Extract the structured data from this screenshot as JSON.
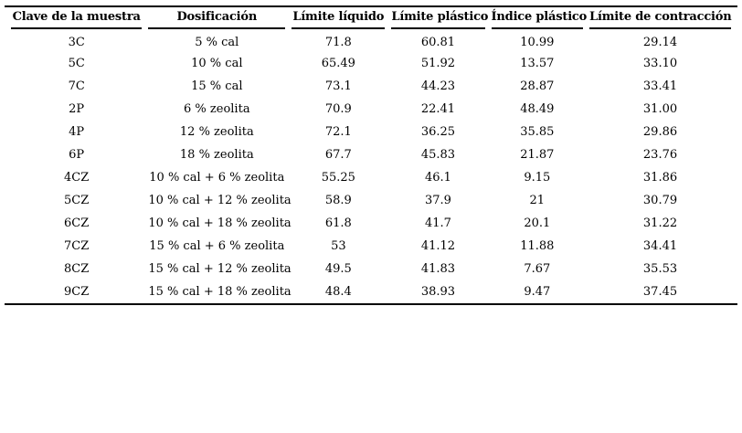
{
  "page": {
    "background": "#ffffff"
  },
  "colors": {
    "text": "#000000",
    "rule_line": "#000000",
    "background": "#ffffff"
  },
  "table": {
    "columns": [
      "Clave de la muestra",
      "Dosificación",
      "Límite líquido",
      "Límite plástico",
      "Índice plástico",
      "Límite de contracción"
    ],
    "rows": [
      [
        "3C",
        "5 % cal",
        "71.8",
        "60.81",
        "10.99",
        "29.14"
      ],
      [
        "5C",
        "10 % cal",
        "65.49",
        "51.92",
        "13.57",
        "33.10"
      ],
      [
        "7C",
        "15 % cal",
        "73.1",
        "44.23",
        "28.87",
        "33.41"
      ],
      [
        "2P",
        "6 % zeolita",
        "70.9",
        "22.41",
        "48.49",
        "31.00"
      ],
      [
        "4P",
        "12 % zeolita",
        "72.1",
        "36.25",
        "35.85",
        "29.86"
      ],
      [
        "6P",
        "18 % zeolita",
        "67.7",
        "45.83",
        "21.87",
        "23.76"
      ],
      [
        "4CZ",
        "10 % cal + 6 % zeolita",
        "55.25",
        "46.1",
        "9.15",
        "31.86"
      ],
      [
        "5CZ",
        "10 % cal + 12 % zeolita",
        "58.9",
        "37.9",
        "21",
        "30.79"
      ],
      [
        "6CZ",
        "10 % cal + 18 % zeolita",
        "61.8",
        "41.7",
        "20.1",
        "31.22"
      ],
      [
        "7CZ",
        "15 % cal + 6 % zeolita",
        "53",
        "41.12",
        "11.88",
        "34.41"
      ],
      [
        "8CZ",
        "15 % cal + 12 % zeolita",
        "49.5",
        "41.83",
        "7.67",
        "35.53"
      ],
      [
        "9CZ",
        "15 % cal + 18 % zeolita",
        "48.4",
        "38.93",
        "9.47",
        "37.45"
      ]
    ]
  }
}
